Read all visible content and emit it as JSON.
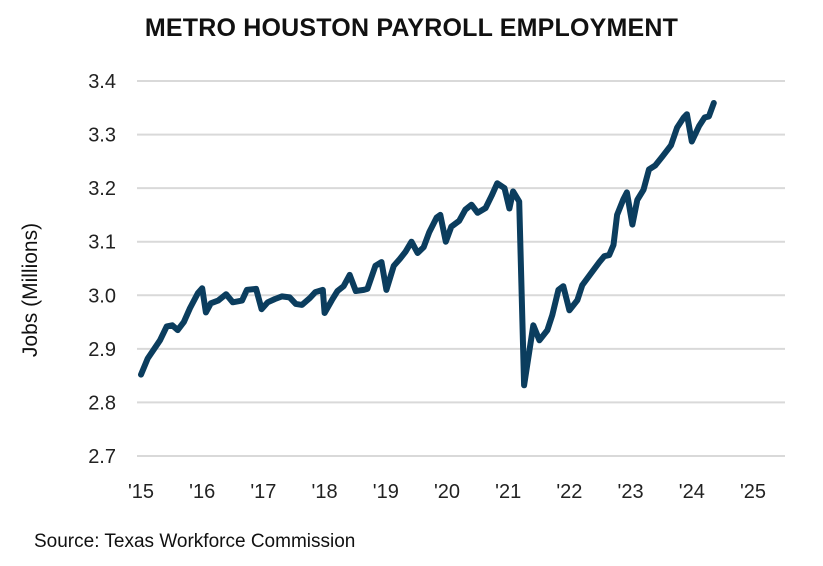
{
  "chart_data": {
    "type": "line",
    "title": "METRO HOUSTON PAYROLL EMPLOYMENT",
    "xlabel": "",
    "ylabel": "Jobs (Millions)",
    "xlim": [
      2015,
      2025
    ],
    "ylim": [
      2.7,
      3.4
    ],
    "grid": "horizontal",
    "x_tick_values": [
      2015,
      2016,
      2017,
      2018,
      2019,
      2020,
      2021,
      2022,
      2023,
      2024,
      2025
    ],
    "x_tick_labels": [
      "'15",
      "'16",
      "'17",
      "'18",
      "'19",
      "'20",
      "'21",
      "'22",
      "'23",
      "'24",
      "'25"
    ],
    "y_tick_values": [
      2.7,
      2.8,
      2.9,
      3.0,
      3.1,
      3.2,
      3.3,
      3.4
    ],
    "y_tick_labels": [
      "2.7",
      "2.8",
      "2.9",
      "3.0",
      "3.1",
      "3.2",
      "3.3",
      "3.4"
    ],
    "line_color": "#0b3d5e",
    "grid_color": "#d9d9d9",
    "series": [
      {
        "x": [
          2015.0,
          2015.11,
          2015.31,
          2015.42,
          2015.51,
          2015.6,
          2015.7,
          2015.8,
          2015.93,
          2016.0,
          2016.06,
          2016.14,
          2016.26,
          2016.39,
          2016.5,
          2016.65,
          2016.73,
          2016.88,
          2016.97,
          2017.07,
          2017.19,
          2017.3,
          2017.43,
          2017.53,
          2017.63,
          2017.76,
          2017.85,
          2017.97,
          2018.0,
          2018.12,
          2018.21,
          2018.31,
          2018.41,
          2018.51,
          2018.64,
          2018.7,
          2018.83,
          2018.93,
          2019.01,
          2019.13,
          2019.23,
          2019.32,
          2019.42,
          2019.52,
          2019.62,
          2019.71,
          2019.83,
          2019.89,
          2019.98,
          2020.07,
          2020.2,
          2020.3,
          2020.4,
          2020.5,
          2020.63,
          2020.73,
          2020.82,
          2020.94,
          2021.02,
          2021.08,
          2021.18,
          2021.26,
          2021.41,
          2021.51,
          2021.64,
          2021.72,
          2021.82,
          2021.9,
          2022.0,
          2022.13,
          2022.21,
          2022.36,
          2022.49,
          2022.57,
          2022.65,
          2022.72,
          2022.78,
          2022.88,
          2022.94,
          2023.03,
          2023.11,
          2023.21,
          2023.3,
          2023.4,
          2023.52,
          2023.66,
          2023.76,
          2023.87,
          2023.92,
          2024.0,
          2024.12,
          2024.21,
          2024.28,
          2024.36
        ],
        "y": [
          2.852,
          2.882,
          2.916,
          2.942,
          2.944,
          2.935,
          2.95,
          2.976,
          3.004,
          3.013,
          2.968,
          2.985,
          2.99,
          3.002,
          2.987,
          2.99,
          3.01,
          3.012,
          2.974,
          2.987,
          2.993,
          2.998,
          2.996,
          2.984,
          2.982,
          2.995,
          3.006,
          3.01,
          2.967,
          2.991,
          3.008,
          3.017,
          3.038,
          3.008,
          3.01,
          3.012,
          3.055,
          3.062,
          3.01,
          3.055,
          3.068,
          3.081,
          3.1,
          3.079,
          3.09,
          3.118,
          3.145,
          3.15,
          3.1,
          3.128,
          3.139,
          3.16,
          3.169,
          3.154,
          3.163,
          3.186,
          3.209,
          3.2,
          3.162,
          3.194,
          3.175,
          2.832,
          2.944,
          2.916,
          2.935,
          2.963,
          3.01,
          3.017,
          2.972,
          2.991,
          3.019,
          3.042,
          3.062,
          3.073,
          3.075,
          3.094,
          3.15,
          3.179,
          3.192,
          3.132,
          3.178,
          3.197,
          3.235,
          3.242,
          3.259,
          3.28,
          3.313,
          3.332,
          3.338,
          3.287,
          3.316,
          3.332,
          3.334,
          3.359
        ]
      }
    ]
  },
  "source": "Source: Texas Workforce Commission"
}
